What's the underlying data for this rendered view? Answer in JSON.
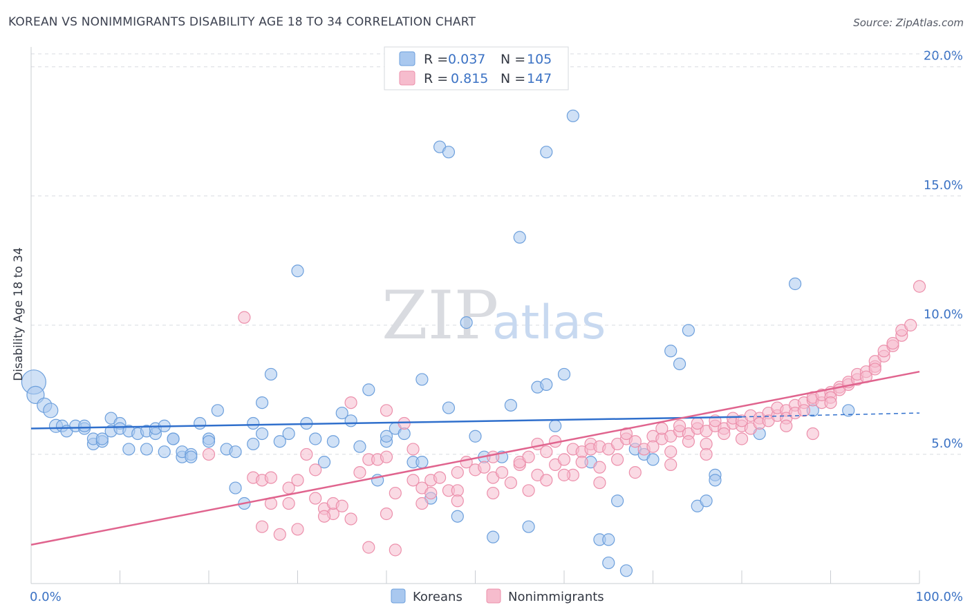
{
  "title": "KOREAN VS NONIMMIGRANTS DISABILITY AGE 18 TO 34 CORRELATION CHART",
  "source": "Source: ZipAtlas.com",
  "watermark": {
    "part1": "ZIP",
    "part2": "atlas"
  },
  "colors": {
    "koreans_fill": "#a9c8ef",
    "koreans_stroke": "#6c9fdc",
    "koreans_line": "#2f6fcc",
    "nonimmigrants_fill": "#f6bccd",
    "nonimmigrants_stroke": "#ec8fab",
    "nonimmigrants_line": "#e0648e",
    "grid": "#d8dbe0",
    "tick_text": "#3b72c4"
  },
  "legend": {
    "r_label": "R =",
    "n_label": "N =",
    "rows": [
      {
        "r": "0.037",
        "n": "105"
      },
      {
        "r": "0.815",
        "n": "147"
      }
    ]
  },
  "chart_data": {
    "type": "scatter",
    "title": "KOREAN VS NONIMMIGRANTS DISABILITY AGE 18 TO 34 CORRELATION CHART",
    "xlabel": "",
    "ylabel": "Disability Age 18 to 34",
    "x_tick_labels": [
      "0.0%",
      "100.0%"
    ],
    "y_tick_labels": [
      "5.0%",
      "10.0%",
      "15.0%",
      "20.0%"
    ],
    "y_ticks": [
      5,
      10,
      15,
      20
    ],
    "xlim": [
      0,
      100
    ],
    "ylim": [
      0,
      20.5
    ],
    "grid": true,
    "legend_position": "top-center",
    "series": [
      {
        "name": "Koreans",
        "r": 0.037,
        "n": 105,
        "trend": {
          "x": [
            0,
            80
          ],
          "y": [
            6.0,
            6.45
          ],
          "dashed_to": [
            100,
            6.6
          ]
        },
        "points": [
          [
            0.3,
            7.8,
            16
          ],
          [
            0.5,
            7.3,
            11
          ],
          [
            1.5,
            6.9,
            9
          ],
          [
            2.2,
            6.7,
            9
          ],
          [
            2.8,
            6.1,
            8
          ],
          [
            3.5,
            6.1,
            7
          ],
          [
            4,
            5.9,
            7
          ],
          [
            5,
            6.1,
            7
          ],
          [
            6,
            6.0,
            7
          ],
          [
            6,
            6.1,
            7
          ],
          [
            7,
            5.4,
            7
          ],
          [
            7,
            5.6,
            7
          ],
          [
            8,
            5.5,
            7
          ],
          [
            8,
            5.6,
            7
          ],
          [
            9,
            6.4,
            7
          ],
          [
            9,
            5.9,
            7
          ],
          [
            10,
            6.2,
            7
          ],
          [
            10,
            6.0,
            7
          ],
          [
            11,
            5.9,
            7
          ],
          [
            11,
            5.2,
            7
          ],
          [
            12,
            5.8,
            7
          ],
          [
            13,
            5.9,
            7
          ],
          [
            13,
            5.2,
            7
          ],
          [
            14,
            5.8,
            7
          ],
          [
            14,
            6.0,
            7
          ],
          [
            15,
            5.1,
            7
          ],
          [
            15,
            6.1,
            7
          ],
          [
            16,
            5.6,
            7
          ],
          [
            16,
            5.6,
            7
          ],
          [
            17,
            4.9,
            7
          ],
          [
            17,
            5.1,
            7
          ],
          [
            18,
            5.0,
            7
          ],
          [
            18,
            4.9,
            7
          ],
          [
            20,
            5.6,
            7
          ],
          [
            19,
            6.2,
            7
          ],
          [
            20,
            5.5,
            7
          ],
          [
            21,
            6.7,
            7
          ],
          [
            22,
            5.2,
            7
          ],
          [
            23,
            3.7,
            7
          ],
          [
            23,
            5.1,
            7
          ],
          [
            24,
            3.1,
            7
          ],
          [
            25,
            6.2,
            7
          ],
          [
            25,
            5.4,
            7
          ],
          [
            26,
            5.8,
            7
          ],
          [
            26,
            7.0,
            7
          ],
          [
            27,
            8.1,
            7
          ],
          [
            28,
            5.5,
            7
          ],
          [
            29,
            5.8,
            7
          ],
          [
            30,
            12.1,
            7
          ],
          [
            31,
            6.2,
            7
          ],
          [
            32,
            5.6,
            7
          ],
          [
            33,
            4.7,
            7
          ],
          [
            34,
            5.5,
            7
          ],
          [
            35,
            6.6,
            7
          ],
          [
            36,
            6.3,
            7
          ],
          [
            37,
            5.3,
            7
          ],
          [
            38,
            7.5,
            7
          ],
          [
            39,
            4.0,
            7
          ],
          [
            40,
            5.5,
            7
          ],
          [
            40,
            5.7,
            7
          ],
          [
            41,
            6.0,
            7
          ],
          [
            42,
            5.8,
            7
          ],
          [
            43,
            4.7,
            7
          ],
          [
            44,
            4.7,
            7
          ],
          [
            44,
            7.9,
            7
          ],
          [
            45,
            3.3,
            7
          ],
          [
            46,
            16.9,
            7
          ],
          [
            47,
            16.7,
            7
          ],
          [
            47,
            6.8,
            7
          ],
          [
            48,
            2.6,
            7
          ],
          [
            49,
            10.1,
            7
          ],
          [
            50,
            5.7,
            7
          ],
          [
            51,
            4.9,
            7
          ],
          [
            52,
            1.8,
            7
          ],
          [
            53,
            4.9,
            7
          ],
          [
            54,
            6.9,
            7
          ],
          [
            55,
            13.4,
            7
          ],
          [
            56,
            2.2,
            7
          ],
          [
            57,
            7.6,
            7
          ],
          [
            58,
            7.7,
            7
          ],
          [
            58,
            16.7,
            7
          ],
          [
            59,
            6.1,
            7
          ],
          [
            60,
            8.1,
            7
          ],
          [
            61,
            18.1,
            7
          ],
          [
            63,
            4.7,
            7
          ],
          [
            64,
            1.7,
            7
          ],
          [
            65,
            0.8,
            7
          ],
          [
            65,
            1.7,
            7
          ],
          [
            66,
            3.2,
            7
          ],
          [
            67,
            0.5,
            7
          ],
          [
            68,
            5.2,
            7
          ],
          [
            69,
            5.0,
            7
          ],
          [
            70,
            4.8,
            7
          ],
          [
            72,
            9.0,
            7
          ],
          [
            73,
            8.5,
            7
          ],
          [
            74,
            9.8,
            7
          ],
          [
            75,
            3.0,
            7
          ],
          [
            76,
            3.2,
            7
          ],
          [
            77,
            4.2,
            7
          ],
          [
            77,
            4.0,
            7
          ],
          [
            82,
            5.8,
            7
          ],
          [
            86,
            11.6,
            7
          ],
          [
            88,
            6.7,
            7
          ],
          [
            92,
            6.7,
            7
          ]
        ]
      },
      {
        "name": "Nonimmigrants",
        "r": 0.815,
        "n": 147,
        "trend": {
          "x": [
            0,
            100
          ],
          "y": [
            1.5,
            8.2
          ]
        },
        "points": [
          [
            20,
            5.0,
            7
          ],
          [
            24,
            10.3,
            7
          ],
          [
            25,
            4.1,
            7
          ],
          [
            26,
            2.2,
            7
          ],
          [
            26,
            4.0,
            7
          ],
          [
            27,
            3.1,
            7
          ],
          [
            27,
            4.1,
            7
          ],
          [
            28,
            1.9,
            7
          ],
          [
            29,
            3.7,
            7
          ],
          [
            29,
            3.1,
            7
          ],
          [
            30,
            2.1,
            7
          ],
          [
            30,
            4.0,
            7
          ],
          [
            31,
            5.0,
            7
          ],
          [
            32,
            3.3,
            7
          ],
          [
            32,
            4.4,
            7
          ],
          [
            33,
            2.9,
            7
          ],
          [
            34,
            2.7,
            7
          ],
          [
            34,
            3.1,
            7
          ],
          [
            35,
            3.0,
            7
          ],
          [
            36,
            7.0,
            7
          ],
          [
            37,
            4.3,
            7
          ],
          [
            38,
            1.4,
            7
          ],
          [
            38,
            4.8,
            7
          ],
          [
            39,
            4.8,
            7
          ],
          [
            40,
            6.7,
            7
          ],
          [
            40,
            4.9,
            7
          ],
          [
            41,
            3.5,
            7
          ],
          [
            41,
            1.3,
            7
          ],
          [
            42,
            6.2,
            7
          ],
          [
            43,
            5.2,
            7
          ],
          [
            43,
            4.0,
            7
          ],
          [
            44,
            3.7,
            7
          ],
          [
            45,
            3.5,
            7
          ],
          [
            45,
            4.0,
            7
          ],
          [
            46,
            4.1,
            7
          ],
          [
            47,
            3.6,
            7
          ],
          [
            48,
            4.3,
            7
          ],
          [
            48,
            3.6,
            7
          ],
          [
            49,
            4.7,
            7
          ],
          [
            50,
            4.4,
            7
          ],
          [
            51,
            4.5,
            7
          ],
          [
            52,
            4.9,
            7
          ],
          [
            52,
            4.1,
            7
          ],
          [
            53,
            4.3,
            7
          ],
          [
            54,
            3.9,
            7
          ],
          [
            55,
            4.6,
            7
          ],
          [
            55,
            4.7,
            7
          ],
          [
            56,
            4.9,
            7
          ],
          [
            57,
            5.4,
            7
          ],
          [
            57,
            4.2,
            7
          ],
          [
            58,
            5.1,
            7
          ],
          [
            58,
            4.0,
            7
          ],
          [
            59,
            4.6,
            7
          ],
          [
            59,
            5.5,
            7
          ],
          [
            60,
            4.8,
            7
          ],
          [
            61,
            5.2,
            7
          ],
          [
            61,
            4.2,
            7
          ],
          [
            62,
            5.1,
            7
          ],
          [
            62,
            4.7,
            7
          ],
          [
            63,
            5.4,
            7
          ],
          [
            63,
            5.2,
            7
          ],
          [
            64,
            5.3,
            7
          ],
          [
            64,
            4.5,
            7
          ],
          [
            65,
            5.2,
            7
          ],
          [
            66,
            5.4,
            7
          ],
          [
            66,
            4.8,
            7
          ],
          [
            67,
            5.6,
            7
          ],
          [
            67,
            5.8,
            7
          ],
          [
            68,
            5.5,
            7
          ],
          [
            69,
            5.2,
            7
          ],
          [
            70,
            5.7,
            7
          ],
          [
            70,
            5.3,
            7
          ],
          [
            71,
            5.6,
            7
          ],
          [
            71,
            6.0,
            7
          ],
          [
            72,
            5.7,
            7
          ],
          [
            72,
            5.1,
            7
          ],
          [
            73,
            5.9,
            7
          ],
          [
            73,
            6.1,
            7
          ],
          [
            74,
            5.8,
            7
          ],
          [
            74,
            5.5,
            7
          ],
          [
            75,
            6.0,
            7
          ],
          [
            75,
            6.2,
            7
          ],
          [
            76,
            5.9,
            7
          ],
          [
            76,
            5.4,
            7
          ],
          [
            77,
            6.1,
            7
          ],
          [
            77,
            6.3,
            7
          ],
          [
            78,
            6.0,
            7
          ],
          [
            78,
            5.8,
            7
          ],
          [
            79,
            6.2,
            7
          ],
          [
            79,
            6.4,
            7
          ],
          [
            80,
            6.1,
            7
          ],
          [
            80,
            6.3,
            7
          ],
          [
            81,
            6.5,
            7
          ],
          [
            81,
            6.0,
            7
          ],
          [
            82,
            6.4,
            7
          ],
          [
            82,
            6.2,
            7
          ],
          [
            83,
            6.6,
            7
          ],
          [
            83,
            6.3,
            7
          ],
          [
            84,
            6.5,
            7
          ],
          [
            84,
            6.8,
            7
          ],
          [
            85,
            6.7,
            7
          ],
          [
            85,
            6.4,
            7
          ],
          [
            86,
            6.9,
            7
          ],
          [
            86,
            6.6,
            7
          ],
          [
            87,
            7.0,
            7
          ],
          [
            87,
            6.7,
            7
          ],
          [
            88,
            7.1,
            7
          ],
          [
            88,
            7.2,
            7
          ],
          [
            89,
            7.0,
            7
          ],
          [
            89,
            7.3,
            7
          ],
          [
            90,
            7.4,
            7
          ],
          [
            90,
            7.2,
            7
          ],
          [
            91,
            7.6,
            7
          ],
          [
            91,
            7.5,
            7
          ],
          [
            92,
            7.7,
            7
          ],
          [
            92,
            7.8,
            7
          ],
          [
            93,
            7.9,
            7
          ],
          [
            93,
            8.1,
            7
          ],
          [
            94,
            8.2,
            7
          ],
          [
            94,
            8.0,
            7
          ],
          [
            95,
            8.4,
            7
          ],
          [
            95,
            8.6,
            7
          ],
          [
            96,
            8.8,
            7
          ],
          [
            96,
            9.0,
            7
          ],
          [
            97,
            9.2,
            7
          ],
          [
            97,
            9.3,
            7
          ],
          [
            98,
            9.6,
            7
          ],
          [
            98,
            9.8,
            7
          ],
          [
            99,
            10.0,
            7
          ],
          [
            100,
            11.5,
            7
          ],
          [
            95,
            8.3,
            7
          ],
          [
            90,
            7.0,
            7
          ],
          [
            85,
            6.1,
            7
          ],
          [
            80,
            5.6,
            7
          ],
          [
            76,
            5.0,
            7
          ],
          [
            72,
            4.6,
            7
          ],
          [
            68,
            4.3,
            7
          ],
          [
            64,
            3.9,
            7
          ],
          [
            60,
            4.2,
            7
          ],
          [
            56,
            3.6,
            7
          ],
          [
            52,
            3.5,
            7
          ],
          [
            48,
            3.2,
            7
          ],
          [
            44,
            3.1,
            7
          ],
          [
            40,
            2.7,
            7
          ],
          [
            36,
            2.5,
            7
          ],
          [
            33,
            2.6,
            7
          ],
          [
            88,
            5.8,
            7
          ]
        ]
      }
    ]
  }
}
